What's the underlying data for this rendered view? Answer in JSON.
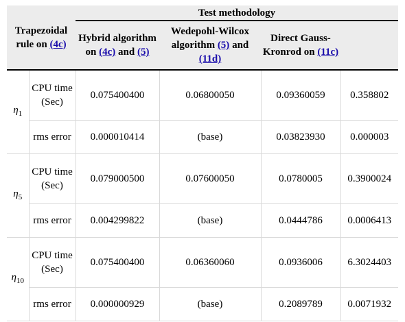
{
  "header": {
    "group_title": "Test methodology",
    "col0": {
      "text": "Trapezoidal rule on ",
      "ref": "(4c)"
    },
    "col1": {
      "text": "Hybrid algorithm on ",
      "ref1": "(4c)",
      "mid": " and ",
      "ref2": "(5)"
    },
    "col2": {
      "text": "Wedepohl-Wilcox algorithm ",
      "ref1": "(5)",
      "mid": " and ",
      "ref2": "(11d)"
    },
    "col3": {
      "text": "Direct Gauss-Kronrod on ",
      "ref": "(11c)"
    },
    "col4": ""
  },
  "rows": [
    {
      "eta": "η",
      "eta_sub": "1",
      "cpu": {
        "label": "CPU time (Sec)",
        "values": [
          "0.075400400",
          "0.06800050",
          "0.09360059",
          "0.358802"
        ]
      },
      "rms": {
        "label": "rms error",
        "values": [
          "0.000010414",
          "(base)",
          "0.03823930",
          "0.000003"
        ]
      }
    },
    {
      "eta": "η",
      "eta_sub": "5",
      "cpu": {
        "label": "CPU time (Sec)",
        "values": [
          "0.079000500",
          "0.07600050",
          "0.0780005",
          "0.3900024"
        ]
      },
      "rms": {
        "label": "rms error",
        "values": [
          "0.004299822",
          "(base)",
          "0.0444786",
          "0.0006413"
        ]
      }
    },
    {
      "eta": "η",
      "eta_sub": "10",
      "cpu": {
        "label": "CPU time (Sec)",
        "values": [
          "0.075400400",
          "0.06360060",
          "0.0936006",
          "6.3024403"
        ]
      },
      "rms": {
        "label": "rms error",
        "values": [
          "0.000000929",
          "(base)",
          "0.2089789",
          "0.0071932"
        ]
      }
    }
  ]
}
